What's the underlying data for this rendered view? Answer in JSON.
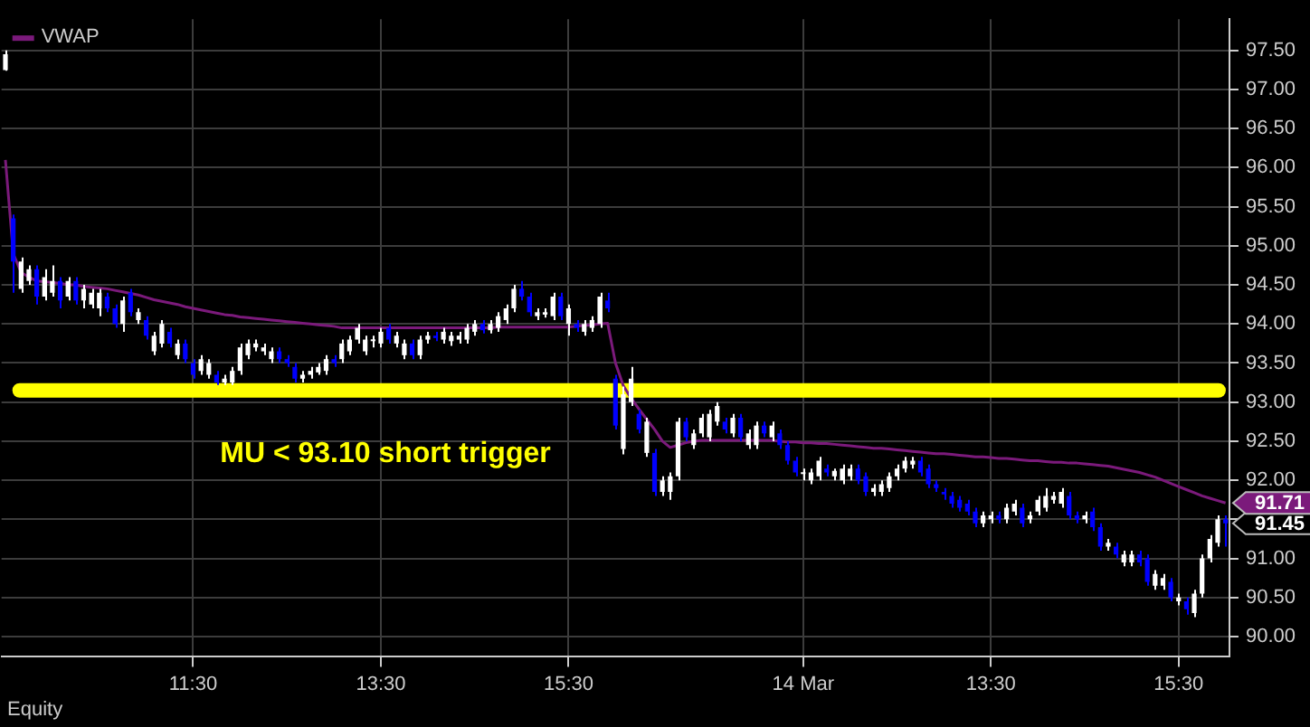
{
  "chart_data": {
    "type": "candlestick",
    "categories": [
      null,
      null,
      null,
      null,
      null,
      null,
      null,
      null,
      null,
      null,
      null,
      null,
      null,
      null,
      null,
      null,
      null,
      null,
      null,
      null,
      null,
      null,
      null,
      null,
      "11:30",
      null,
      null,
      null,
      null,
      null,
      null,
      null,
      null,
      null,
      null,
      null,
      null,
      null,
      null,
      null,
      null,
      null,
      null,
      null,
      null,
      null,
      null,
      null,
      "13:30",
      null,
      null,
      null,
      null,
      null,
      null,
      null,
      null,
      null,
      null,
      null,
      null,
      null,
      null,
      null,
      null,
      null,
      null,
      null,
      null,
      null,
      null,
      null,
      "15:30",
      null,
      null,
      null,
      null,
      null,
      null,
      null,
      null,
      null,
      null,
      null,
      null,
      null,
      null,
      null,
      null,
      null,
      null,
      null,
      null,
      null,
      null,
      null,
      null,
      null,
      null,
      null,
      null,
      null,
      "14 Mar",
      null,
      null,
      null,
      null,
      null,
      null,
      null,
      null,
      null,
      null,
      null,
      null,
      null,
      null,
      null,
      null,
      null,
      null,
      null,
      null,
      null,
      null,
      null,
      "13:30",
      null,
      null,
      null,
      null,
      null,
      null,
      null,
      null,
      null,
      null,
      null,
      null,
      null,
      null,
      null,
      null,
      null,
      null,
      null,
      null,
      null,
      null,
      null,
      "15:30",
      null,
      null,
      null,
      null,
      null,
      null
    ],
    "ohlc": [
      [
        97.25,
        97.5,
        97.24,
        97.45
      ],
      [
        95.35,
        95.4,
        94.4,
        94.8
      ],
      [
        94.45,
        94.85,
        94.4,
        94.8
      ],
      [
        94.55,
        94.75,
        94.5,
        94.7
      ],
      [
        94.7,
        94.75,
        94.25,
        94.35
      ],
      [
        94.35,
        94.7,
        94.3,
        94.6
      ],
      [
        94.4,
        94.75,
        94.35,
        94.55
      ],
      [
        94.55,
        94.6,
        94.2,
        94.3
      ],
      [
        94.35,
        94.6,
        94.3,
        94.55
      ],
      [
        94.55,
        94.6,
        94.25,
        94.3
      ],
      [
        94.3,
        94.5,
        94.2,
        94.45
      ],
      [
        94.25,
        94.45,
        94.2,
        94.4
      ],
      [
        94.2,
        94.45,
        94.1,
        94.4
      ],
      [
        94.35,
        94.4,
        94.15,
        94.2
      ],
      [
        94.2,
        94.25,
        93.95,
        94.0
      ],
      [
        94.0,
        94.35,
        93.9,
        94.3
      ],
      [
        94.4,
        94.45,
        94.1,
        94.15
      ],
      [
        94.05,
        94.2,
        94.0,
        94.15
      ],
      [
        94.05,
        94.1,
        93.8,
        93.85
      ],
      [
        93.65,
        93.9,
        93.6,
        93.85
      ],
      [
        93.75,
        94.05,
        93.7,
        94.0
      ],
      [
        93.9,
        93.95,
        93.7,
        93.75
      ],
      [
        93.6,
        93.8,
        93.55,
        93.75
      ],
      [
        93.75,
        93.8,
        93.5,
        93.55
      ],
      [
        93.5,
        93.55,
        93.3,
        93.35
      ],
      [
        93.4,
        93.6,
        93.35,
        93.55
      ],
      [
        93.35,
        93.55,
        93.3,
        93.5
      ],
      [
        93.35,
        93.4,
        93.22,
        93.25
      ],
      [
        93.25,
        93.35,
        93.22,
        93.3
      ],
      [
        93.25,
        93.45,
        93.22,
        93.4
      ],
      [
        93.4,
        93.75,
        93.35,
        93.7
      ],
      [
        93.6,
        93.8,
        93.55,
        93.75
      ],
      [
        93.7,
        93.8,
        93.65,
        93.75
      ],
      [
        93.65,
        93.75,
        93.6,
        93.7
      ],
      [
        93.55,
        93.7,
        93.5,
        93.65
      ],
      [
        93.65,
        93.7,
        93.5,
        93.55
      ],
      [
        93.55,
        93.6,
        93.45,
        93.5
      ],
      [
        93.45,
        93.5,
        93.25,
        93.3
      ],
      [
        93.3,
        93.4,
        93.25,
        93.35
      ],
      [
        93.35,
        93.45,
        93.3,
        93.4
      ],
      [
        93.38,
        93.5,
        93.35,
        93.45
      ],
      [
        93.4,
        93.6,
        93.35,
        93.55
      ],
      [
        93.55,
        93.6,
        93.45,
        93.5
      ],
      [
        93.55,
        93.8,
        93.5,
        93.75
      ],
      [
        93.65,
        93.85,
        93.6,
        93.8
      ],
      [
        93.8,
        94.0,
        93.75,
        93.95
      ],
      [
        93.65,
        93.85,
        93.6,
        93.8
      ],
      [
        93.78,
        93.85,
        93.7,
        93.8
      ],
      [
        93.75,
        93.95,
        93.7,
        93.9
      ],
      [
        93.95,
        94.0,
        93.75,
        93.8
      ],
      [
        93.75,
        93.9,
        93.7,
        93.85
      ],
      [
        93.6,
        93.8,
        93.55,
        93.75
      ],
      [
        93.75,
        93.8,
        93.55,
        93.6
      ],
      [
        93.6,
        93.85,
        93.55,
        93.8
      ],
      [
        93.8,
        93.9,
        93.75,
        93.85
      ],
      [
        93.85,
        93.9,
        93.78,
        93.82
      ],
      [
        93.8,
        93.95,
        93.75,
        93.9
      ],
      [
        93.78,
        93.9,
        93.72,
        93.85
      ],
      [
        93.8,
        93.9,
        93.75,
        93.85
      ],
      [
        93.8,
        94.0,
        93.75,
        93.95
      ],
      [
        93.9,
        94.05,
        93.85,
        94.0
      ],
      [
        94.0,
        94.05,
        93.88,
        93.92
      ],
      [
        93.92,
        94.05,
        93.88,
        94.0
      ],
      [
        93.95,
        94.15,
        93.9,
        94.1
      ],
      [
        94.05,
        94.25,
        94.0,
        94.2
      ],
      [
        94.2,
        94.5,
        94.15,
        94.45
      ],
      [
        94.45,
        94.55,
        94.3,
        94.35
      ],
      [
        94.35,
        94.4,
        94.1,
        94.15
      ],
      [
        94.1,
        94.2,
        94.05,
        94.15
      ],
      [
        94.12,
        94.2,
        94.08,
        94.15
      ],
      [
        94.1,
        94.4,
        94.05,
        94.35
      ],
      [
        94.35,
        94.4,
        94.05,
        94.1
      ],
      [
        94.0,
        94.25,
        93.85,
        94.2
      ],
      [
        94.0,
        94.05,
        93.9,
        93.95
      ],
      [
        93.9,
        94.05,
        93.85,
        94.0
      ],
      [
        93.95,
        94.1,
        93.9,
        94.05
      ],
      [
        94.0,
        94.4,
        93.95,
        94.35
      ],
      [
        94.3,
        94.4,
        94.15,
        94.2
      ],
      [
        93.3,
        93.35,
        92.65,
        92.7
      ],
      [
        92.4,
        93.2,
        92.33,
        93.1
      ],
      [
        93.0,
        93.45,
        92.95,
        93.3
      ],
      [
        92.85,
        92.9,
        92.6,
        92.65
      ],
      [
        92.35,
        92.8,
        92.3,
        92.75
      ],
      [
        92.35,
        92.4,
        91.8,
        91.85
      ],
      [
        91.85,
        92.05,
        91.8,
        92.0
      ],
      [
        91.85,
        92.1,
        91.75,
        92.05
      ],
      [
        92.05,
        92.8,
        92.0,
        92.75
      ],
      [
        92.75,
        92.8,
        92.5,
        92.55
      ],
      [
        92.45,
        92.65,
        92.4,
        92.6
      ],
      [
        92.6,
        92.85,
        92.55,
        92.8
      ],
      [
        92.55,
        92.9,
        92.5,
        92.85
      ],
      [
        92.75,
        93.0,
        92.7,
        92.95
      ],
      [
        92.75,
        92.8,
        92.6,
        92.65
      ],
      [
        92.6,
        92.85,
        92.55,
        92.8
      ],
      [
        92.8,
        92.85,
        92.5,
        92.55
      ],
      [
        92.45,
        92.65,
        92.4,
        92.6
      ],
      [
        92.45,
        92.75,
        92.4,
        92.7
      ],
      [
        92.7,
        92.75,
        92.55,
        92.6
      ],
      [
        92.55,
        92.75,
        92.5,
        92.7
      ],
      [
        92.6,
        92.65,
        92.4,
        92.45
      ],
      [
        92.45,
        92.5,
        92.2,
        92.25
      ],
      [
        92.25,
        92.3,
        92.05,
        92.1
      ],
      [
        92.08,
        92.15,
        92.0,
        92.1
      ],
      [
        92.0,
        92.15,
        91.95,
        92.1
      ],
      [
        92.05,
        92.3,
        92.0,
        92.25
      ],
      [
        92.15,
        92.2,
        92.05,
        92.1
      ],
      [
        92.05,
        92.15,
        92.0,
        92.12
      ],
      [
        92.0,
        92.2,
        91.95,
        92.15
      ],
      [
        92.05,
        92.2,
        92.0,
        92.15
      ],
      [
        92.15,
        92.2,
        91.95,
        92.0
      ],
      [
        92.05,
        92.1,
        91.8,
        91.85
      ],
      [
        91.85,
        91.95,
        91.8,
        91.9
      ],
      [
        91.85,
        92.0,
        91.8,
        91.95
      ],
      [
        91.9,
        92.1,
        91.85,
        92.05
      ],
      [
        92.05,
        92.2,
        92.0,
        92.15
      ],
      [
        92.15,
        92.3,
        92.1,
        92.25
      ],
      [
        92.2,
        92.3,
        92.15,
        92.25
      ],
      [
        92.25,
        92.3,
        92.05,
        92.1
      ],
      [
        92.15,
        92.2,
        91.9,
        91.95
      ],
      [
        91.95,
        92.0,
        91.85,
        91.9
      ],
      [
        91.85,
        91.9,
        91.75,
        91.82
      ],
      [
        91.8,
        91.85,
        91.65,
        91.7
      ],
      [
        91.75,
        91.8,
        91.6,
        91.65
      ],
      [
        91.7,
        91.75,
        91.55,
        91.6
      ],
      [
        91.6,
        91.65,
        91.4,
        91.45
      ],
      [
        91.45,
        91.6,
        91.4,
        91.55
      ],
      [
        91.5,
        91.6,
        91.45,
        91.55
      ],
      [
        91.55,
        91.6,
        91.45,
        91.5
      ],
      [
        91.5,
        91.7,
        91.45,
        91.65
      ],
      [
        91.6,
        91.75,
        91.55,
        91.7
      ],
      [
        91.65,
        91.7,
        91.4,
        91.45
      ],
      [
        91.5,
        91.6,
        91.45,
        91.55
      ],
      [
        91.6,
        91.8,
        91.55,
        91.75
      ],
      [
        91.65,
        91.9,
        91.6,
        91.8
      ],
      [
        91.75,
        91.85,
        91.7,
        91.8
      ],
      [
        91.7,
        91.9,
        91.65,
        91.85
      ],
      [
        91.8,
        91.85,
        91.5,
        91.55
      ],
      [
        91.55,
        91.6,
        91.45,
        91.5
      ],
      [
        91.5,
        91.6,
        91.45,
        91.55
      ],
      [
        91.6,
        91.65,
        91.35,
        91.4
      ],
      [
        91.4,
        91.45,
        91.1,
        91.15
      ],
      [
        91.15,
        91.25,
        91.1,
        91.2
      ],
      [
        91.15,
        91.2,
        91.0,
        91.05
      ],
      [
        90.95,
        91.1,
        90.9,
        91.05
      ],
      [
        90.95,
        91.1,
        90.9,
        91.05
      ],
      [
        91.05,
        91.1,
        90.9,
        90.95
      ],
      [
        91.0,
        91.05,
        90.65,
        90.7
      ],
      [
        90.65,
        90.85,
        90.6,
        90.8
      ],
      [
        90.65,
        90.8,
        90.6,
        90.75
      ],
      [
        90.7,
        90.75,
        90.45,
        90.5
      ],
      [
        90.45,
        90.55,
        90.4,
        90.5
      ],
      [
        90.45,
        90.5,
        90.28,
        90.35
      ],
      [
        90.3,
        90.6,
        90.25,
        90.55
      ],
      [
        90.55,
        91.05,
        90.5,
        91.0
      ],
      [
        91.0,
        91.3,
        90.95,
        91.25
      ],
      [
        91.2,
        91.55,
        91.15,
        91.5
      ],
      [
        91.5,
        91.55,
        91.15,
        91.45
      ]
    ],
    "colors": [
      "#ffffff",
      "#0000ff",
      "#ffffff",
      "#ffffff",
      "#0000ff",
      "#ffffff",
      "#ffffff",
      "#0000ff",
      "#ffffff",
      "#0000ff",
      "#ffffff",
      "#ffffff",
      "#ffffff",
      "#0000ff",
      "#0000ff",
      "#ffffff",
      "#0000ff",
      "#ffffff",
      "#0000ff",
      "#ffffff",
      "#ffffff",
      "#0000ff",
      "#ffffff",
      "#0000ff",
      "#0000ff",
      "#ffffff",
      "#ffffff",
      "#0000ff",
      "#ffffff",
      "#ffffff",
      "#ffffff",
      "#ffffff",
      "#ffffff",
      "#ffffff",
      "#ffffff",
      "#0000ff",
      "#0000ff",
      "#0000ff",
      "#ffffff",
      "#ffffff",
      "#ffffff",
      "#ffffff",
      "#0000ff",
      "#ffffff",
      "#ffffff",
      "#ffffff",
      "#ffffff",
      "#ffffff",
      "#ffffff",
      "#0000ff",
      "#ffffff",
      "#ffffff",
      "#0000ff",
      "#ffffff",
      "#ffffff",
      "#0000ff",
      "#ffffff",
      "#ffffff",
      "#ffffff",
      "#ffffff",
      "#ffffff",
      "#0000ff",
      "#ffffff",
      "#ffffff",
      "#ffffff",
      "#ffffff",
      "#0000ff",
      "#0000ff",
      "#ffffff",
      "#ffffff",
      "#ffffff",
      "#0000ff",
      "#ffffff",
      "#0000ff",
      "#ffffff",
      "#ffffff",
      "#ffffff",
      "#0000ff",
      "#0000ff",
      "#ffffff",
      "#ffffff",
      "#0000ff",
      "#ffffff",
      "#0000ff",
      "#ffffff",
      "#ffffff",
      "#ffffff",
      "#0000ff",
      "#ffffff",
      "#ffffff",
      "#ffffff",
      "#ffffff",
      "#0000ff",
      "#ffffff",
      "#0000ff",
      "#ffffff",
      "#ffffff",
      "#0000ff",
      "#ffffff",
      "#0000ff",
      "#0000ff",
      "#0000ff",
      "#ffffff",
      "#ffffff",
      "#ffffff",
      "#0000ff",
      "#ffffff",
      "#ffffff",
      "#ffffff",
      "#0000ff",
      "#0000ff",
      "#ffffff",
      "#ffffff",
      "#ffffff",
      "#ffffff",
      "#ffffff",
      "#ffffff",
      "#0000ff",
      "#0000ff",
      "#0000ff",
      "#0000ff",
      "#0000ff",
      "#0000ff",
      "#0000ff",
      "#0000ff",
      "#ffffff",
      "#ffffff",
      "#0000ff",
      "#ffffff",
      "#ffffff",
      "#0000ff",
      "#ffffff",
      "#ffffff",
      "#ffffff",
      "#ffffff",
      "#ffffff",
      "#0000ff",
      "#0000ff",
      "#ffffff",
      "#0000ff",
      "#0000ff",
      "#ffffff",
      "#0000ff",
      "#ffffff",
      "#ffffff",
      "#0000ff",
      "#0000ff",
      "#ffffff",
      "#ffffff",
      "#0000ff",
      "#ffffff",
      "#0000ff",
      "#ffffff",
      "#ffffff",
      "#ffffff",
      "#ffffff",
      "#0000ff"
    ],
    "series": [
      {
        "type": "line",
        "name": "VWAP",
        "color": "#7b1a7b",
        "value_labels": [
          null,
          null,
          null,
          null,
          null,
          null,
          null,
          null,
          null,
          null,
          null,
          null,
          null,
          null,
          null,
          null,
          null,
          null,
          null,
          null,
          null,
          null,
          null,
          null,
          null,
          null,
          null,
          null,
          null,
          null,
          null,
          null,
          null,
          null,
          null,
          null,
          null,
          null,
          null,
          null,
          null,
          null,
          null,
          null,
          null,
          null,
          null,
          null,
          null,
          null,
          null,
          null,
          null,
          null,
          null,
          null,
          null,
          null,
          null,
          null,
          null,
          null,
          null,
          null,
          null,
          null,
          null,
          null,
          null,
          null,
          null,
          null,
          null,
          null,
          null,
          null,
          null,
          null,
          null,
          null,
          null,
          null,
          null,
          null,
          null,
          null,
          null,
          null,
          null,
          null,
          null,
          null,
          null,
          null,
          null,
          null,
          null,
          null,
          null,
          null,
          null,
          null,
          null,
          null,
          null,
          null,
          null,
          null,
          null,
          null,
          null,
          null,
          null,
          null,
          null,
          null,
          null,
          null,
          null,
          null,
          null,
          null,
          null,
          null,
          null,
          null,
          null,
          null,
          null,
          null,
          null,
          null,
          null,
          null,
          null,
          null,
          null,
          null,
          null,
          null,
          null,
          null,
          null,
          null,
          null,
          null,
          null,
          null,
          null,
          null,
          null,
          null,
          null,
          null,
          null,
          null,
          "91.71"
        ],
        "values": [
          96.1,
          94.9,
          94.66,
          94.6,
          94.55,
          94.54,
          94.53,
          94.52,
          94.5,
          94.5,
          94.48,
          94.47,
          94.46,
          94.45,
          94.43,
          94.41,
          94.39,
          94.37,
          94.34,
          94.31,
          94.29,
          94.27,
          94.25,
          94.22,
          94.2,
          94.18,
          94.16,
          94.14,
          94.12,
          94.11,
          94.09,
          94.08,
          94.07,
          94.06,
          94.05,
          94.04,
          94.03,
          94.02,
          94.01,
          94.0,
          93.99,
          93.98,
          93.97,
          93.95,
          93.95,
          93.95,
          93.95,
          93.95,
          93.95,
          93.95,
          93.95,
          93.95,
          93.95,
          93.95,
          93.95,
          93.95,
          93.95,
          93.95,
          93.95,
          93.95,
          93.95,
          93.95,
          93.95,
          93.96,
          93.96,
          93.96,
          93.96,
          93.96,
          93.96,
          93.96,
          93.96,
          93.96,
          93.96,
          93.97,
          93.98,
          93.99,
          94.0,
          94.01,
          93.5,
          93.21,
          93.05,
          92.91,
          92.78,
          92.65,
          92.5,
          92.42,
          92.45,
          92.48,
          92.5,
          92.51,
          92.51,
          92.51,
          92.51,
          92.51,
          92.51,
          92.51,
          92.51,
          92.51,
          92.51,
          92.5,
          92.49,
          92.49,
          92.48,
          92.48,
          92.47,
          92.47,
          92.46,
          92.45,
          92.44,
          92.43,
          92.42,
          92.41,
          92.41,
          92.4,
          92.39,
          92.38,
          92.37,
          92.36,
          92.35,
          92.34,
          92.34,
          92.33,
          92.32,
          92.31,
          92.3,
          92.3,
          92.29,
          92.28,
          92.28,
          92.27,
          92.26,
          92.25,
          92.25,
          92.24,
          92.23,
          92.23,
          92.22,
          92.22,
          92.21,
          92.2,
          92.19,
          92.18,
          92.16,
          92.14,
          92.12,
          92.1,
          92.07,
          92.04,
          92.0,
          91.96,
          91.92,
          91.88,
          91.84,
          91.8,
          91.77,
          91.74,
          91.71
        ]
      }
    ],
    "ylim": [
      89.75,
      97.9
    ],
    "yticks": [
      {
        "value": 90,
        "label": "90.00"
      },
      {
        "value": 90.5,
        "label": "90.50"
      },
      {
        "value": 91,
        "label": "91.00"
      },
      {
        "value": 91.5,
        "label": null
      },
      {
        "value": 92,
        "label": "92.00"
      },
      {
        "value": 92.5,
        "label": "92.50"
      },
      {
        "value": 93,
        "label": "93.00"
      },
      {
        "value": 93.5,
        "label": "93.50"
      },
      {
        "value": 94,
        "label": "94.00"
      },
      {
        "value": 94.5,
        "label": "94.50"
      },
      {
        "value": 95,
        "label": "95.00"
      },
      {
        "value": 95.5,
        "label": "95.50"
      },
      {
        "value": 96,
        "label": "96.00"
      },
      {
        "value": 96.5,
        "label": "96.50"
      },
      {
        "value": 97,
        "label": "97.00"
      },
      {
        "value": 97.5,
        "label": "97.50"
      }
    ],
    "grid": true,
    "legend": "top left",
    "ref_lines": [
      {
        "axis": "y",
        "value": 93.15,
        "label": "MU < 93.10 short trigger",
        "color": "#ffff00"
      }
    ],
    "value_labels": [
      null,
      null,
      null,
      null,
      null,
      null,
      null,
      null,
      null,
      null,
      null,
      null,
      null,
      null,
      null,
      null,
      null,
      null,
      null,
      null,
      null,
      null,
      null,
      null,
      null,
      null,
      null,
      null,
      null,
      null,
      null,
      null,
      null,
      null,
      null,
      null,
      null,
      null,
      null,
      null,
      null,
      null,
      null,
      null,
      null,
      null,
      null,
      null,
      null,
      null,
      null,
      null,
      null,
      null,
      null,
      null,
      null,
      null,
      null,
      null,
      null,
      null,
      null,
      null,
      null,
      null,
      null,
      null,
      null,
      null,
      null,
      null,
      null,
      null,
      null,
      null,
      null,
      null,
      null,
      null,
      null,
      null,
      null,
      null,
      null,
      null,
      null,
      null,
      null,
      null,
      null,
      null,
      null,
      null,
      null,
      null,
      null,
      null,
      null,
      null,
      null,
      null,
      null,
      null,
      null,
      null,
      null,
      null,
      null,
      null,
      null,
      null,
      null,
      null,
      null,
      null,
      null,
      null,
      null,
      null,
      null,
      null,
      null,
      null,
      null,
      null,
      null,
      null,
      null,
      null,
      null,
      null,
      null,
      null,
      null,
      null,
      null,
      null,
      null,
      null,
      null,
      null,
      null,
      null,
      null,
      null,
      null,
      null,
      null,
      null,
      null,
      null,
      null,
      null,
      null,
      null,
      "91.45"
    ],
    "annotations": [
      "Equity"
    ]
  }
}
